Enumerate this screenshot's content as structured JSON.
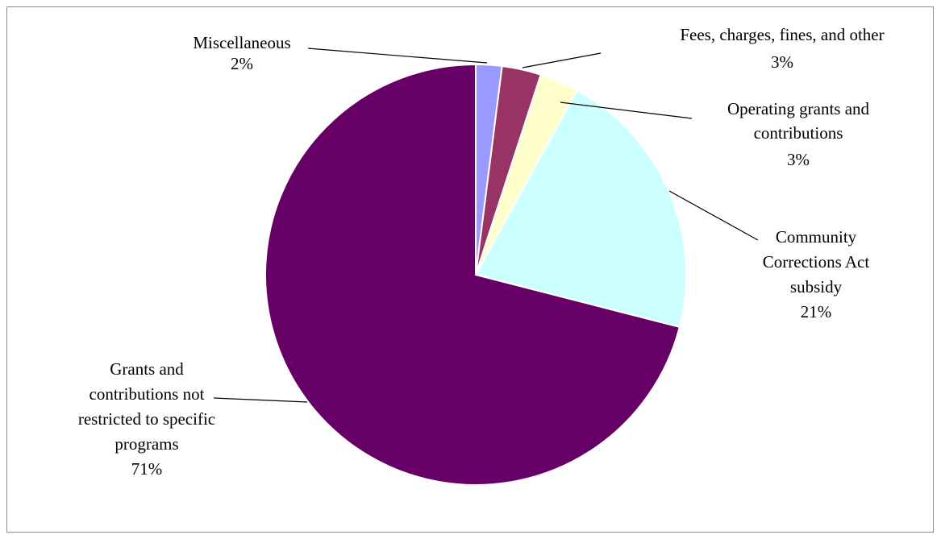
{
  "chart_data": {
    "type": "pie",
    "title": "",
    "start_angle_deg": 0,
    "direction": "clockwise",
    "slices": [
      {
        "label_lines": [
          "Miscellaneous"
        ],
        "percent_label": "2%",
        "value": 2,
        "color": "#9999FF"
      },
      {
        "label_lines": [
          "Fees, charges, fines, and other"
        ],
        "percent_label": "3%",
        "value": 3,
        "color": "#993366"
      },
      {
        "label_lines": [
          "Operating grants and",
          "contributions"
        ],
        "percent_label": "3%",
        "value": 3,
        "color": "#FFFFCC"
      },
      {
        "label_lines": [
          "Community",
          "Corrections Act",
          "subsidy"
        ],
        "percent_label": "21%",
        "value": 21,
        "color": "#CCFFFF"
      },
      {
        "label_lines": [
          "Grants and",
          "contributions not",
          "restricted to specific",
          "programs"
        ],
        "percent_label": "71%",
        "value": 71,
        "color": "#660066"
      }
    ]
  }
}
